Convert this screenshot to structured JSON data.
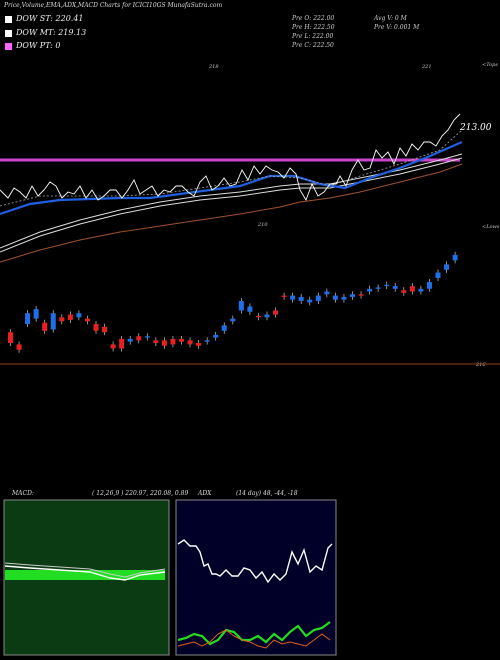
{
  "header": {
    "title": "Price,Volume,EMA,ADX,MACD Charts for ICICI10GS MunafaSutra.com"
  },
  "legend": [
    {
      "label": "DOW ST: 220.41",
      "color": "#ffffff"
    },
    {
      "label": "DOW MT: 219.13",
      "color": "#ffffff"
    },
    {
      "label": "DOW PT: 0",
      "color": "#ff66ff"
    }
  ],
  "ohlc": {
    "open": "Pre   O: 222.00",
    "high": "Pre   H: 222.50",
    "low": "Pre   L: 222.00",
    "close": "Pre   C: 222.50",
    "avg_vol": "Avg V: 0   M",
    "prev_vol": "Pre   V: 0.001 M"
  },
  "price_labels": {
    "right_price": "213.00",
    "tops": "<Tops",
    "lows": "<Lows",
    "lbl_218": "218",
    "lbl_221": "221",
    "lbl_210": "210",
    "lbl_216": "216"
  },
  "macd_title": "MACD:",
  "macd_params": "( 12,26,9 ) 220.97, 220.08, 0.89",
  "adx_title": "ADX",
  "adx_params": "(14  day) 48, -44, -18",
  "colors": {
    "ema_fast": "#1f5fe0",
    "ema_slow": "#ffffff",
    "ema_long": "#a0522d",
    "dow_pt": "#cc44cc",
    "candle_up": "#1f6fe8",
    "candle_down": "#e82020",
    "macd_hist": "#22dd22",
    "adx_plus": "#22dd22",
    "adx_minus": "#e06020"
  },
  "chart_data": {
    "type": "candlestick",
    "candles": [
      {
        "o": 210.2,
        "c": 209.4
      },
      {
        "o": 209.3,
        "c": 208.9
      },
      {
        "o": 210.8,
        "c": 211.6
      },
      {
        "o": 211.2,
        "c": 211.9
      },
      {
        "o": 210.9,
        "c": 210.3
      },
      {
        "o": 210.4,
        "c": 211.6
      },
      {
        "o": 211.3,
        "c": 211.0
      },
      {
        "o": 211.5,
        "c": 211.1
      },
      {
        "o": 211.3,
        "c": 211.6
      },
      {
        "o": 211.2,
        "c": 211.0
      },
      {
        "o": 210.8,
        "c": 210.3
      },
      {
        "o": 210.6,
        "c": 210.2
      },
      {
        "o": 209.3,
        "c": 209.0
      },
      {
        "o": 209.7,
        "c": 209.0
      },
      {
        "o": 209.5,
        "c": 209.7
      },
      {
        "o": 209.9,
        "c": 209.6
      },
      {
        "o": 209.8,
        "c": 209.9
      },
      {
        "o": 209.6,
        "c": 209.4
      },
      {
        "o": 209.6,
        "c": 209.2
      },
      {
        "o": 209.7,
        "c": 209.3
      },
      {
        "o": 209.7,
        "c": 209.5
      },
      {
        "o": 209.6,
        "c": 209.3
      },
      {
        "o": 209.4,
        "c": 209.2
      },
      {
        "o": 209.5,
        "c": 209.6
      },
      {
        "o": 209.8,
        "c": 210.0
      },
      {
        "o": 210.3,
        "c": 210.7
      },
      {
        "o": 211.0,
        "c": 211.2
      },
      {
        "o": 211.8,
        "c": 212.5
      },
      {
        "o": 211.7,
        "c": 212.1
      },
      {
        "o": 211.4,
        "c": 211.3
      },
      {
        "o": 211.3,
        "c": 211.5
      },
      {
        "o": 211.8,
        "c": 211.5
      },
      {
        "o": 212.9,
        "c": 212.8
      },
      {
        "o": 212.6,
        "c": 212.9
      },
      {
        "o": 212.5,
        "c": 212.8
      },
      {
        "o": 212.4,
        "c": 212.6
      },
      {
        "o": 212.5,
        "c": 212.9
      },
      {
        "o": 213.0,
        "c": 213.2
      },
      {
        "o": 212.6,
        "c": 212.9
      },
      {
        "o": 212.6,
        "c": 212.8
      },
      {
        "o": 212.8,
        "c": 213.0
      },
      {
        "o": 213.0,
        "c": 212.9
      },
      {
        "o": 213.2,
        "c": 213.4
      },
      {
        "o": 213.4,
        "c": 213.5
      },
      {
        "o": 213.6,
        "c": 213.7
      },
      {
        "o": 213.4,
        "c": 213.6
      },
      {
        "o": 213.3,
        "c": 213.1
      },
      {
        "o": 213.6,
        "c": 213.2
      },
      {
        "o": 213.2,
        "c": 213.4
      },
      {
        "o": 213.4,
        "c": 213.9
      },
      {
        "o": 214.2,
        "c": 214.6
      },
      {
        "o": 214.8,
        "c": 215.2
      },
      {
        "o": 215.5,
        "c": 215.9
      }
    ],
    "ylim": [
      208.0,
      217.0
    ]
  }
}
